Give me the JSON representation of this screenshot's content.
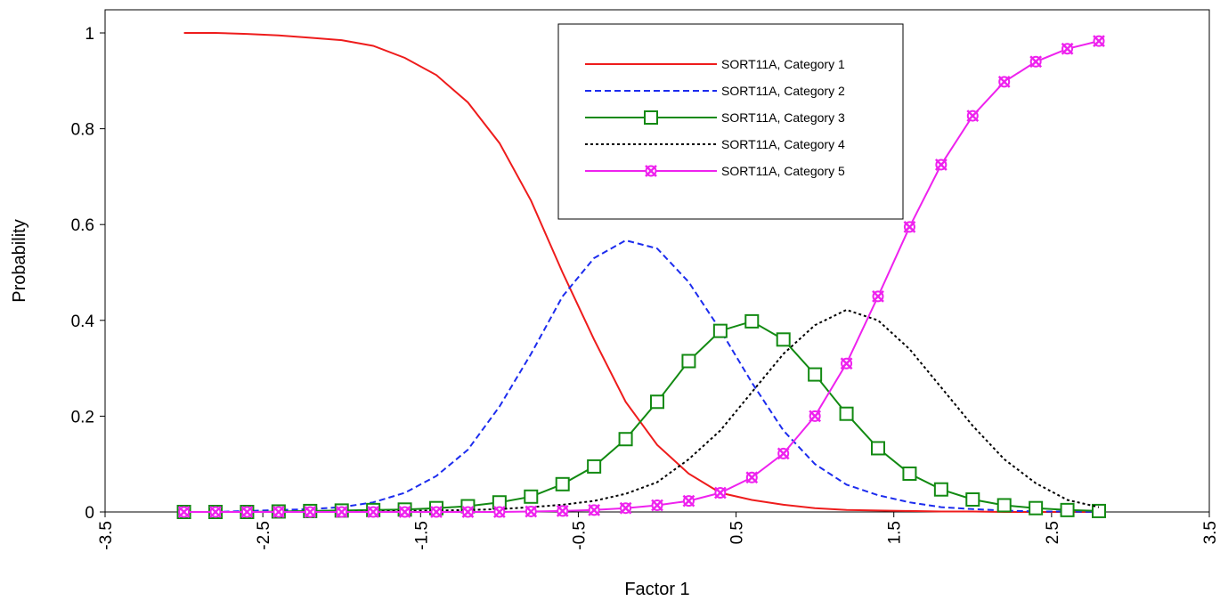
{
  "chart_data": {
    "type": "line",
    "title": "",
    "xlabel": "Factor 1",
    "ylabel": "Probability",
    "xlim": [
      -3.5,
      3.5
    ],
    "ylim": [
      0,
      1.05
    ],
    "x_ticks": [
      "-3.5",
      "-2.5",
      "-1.5",
      "-0.5",
      "0.5",
      "1.5",
      "2.5",
      "3.5"
    ],
    "y_ticks": [
      "0",
      "0.2",
      "0.4",
      "0.6",
      "0.8",
      "1"
    ],
    "grid": false,
    "legend_position": "top-center",
    "x": [
      -3.0,
      -2.8,
      -2.6,
      -2.4,
      -2.2,
      -2.0,
      -1.8,
      -1.6,
      -1.4,
      -1.2,
      -1.0,
      -0.8,
      -0.6,
      -0.4,
      -0.2,
      0.0,
      0.2,
      0.4,
      0.6,
      0.8,
      1.0,
      1.2,
      1.4,
      1.6,
      1.8,
      2.0,
      2.2,
      2.4,
      2.6,
      2.8
    ],
    "series": [
      {
        "name": "SORT11A, Category 1",
        "color": "#ee1c1c",
        "dash": "solid",
        "marker": "none",
        "values": [
          1.0,
          1.0,
          0.998,
          0.995,
          0.99,
          0.985,
          0.973,
          0.948,
          0.912,
          0.855,
          0.77,
          0.65,
          0.5,
          0.36,
          0.23,
          0.14,
          0.08,
          0.04,
          0.025,
          0.015,
          0.008,
          0.004,
          0.003,
          0.002,
          0.001,
          0.001,
          0.0,
          0.0,
          0.0,
          0.0
        ]
      },
      {
        "name": "SORT11A, Category 2",
        "color": "#1c2cee",
        "dash": "dashed",
        "marker": "none",
        "values": [
          0.0,
          0.0,
          0.002,
          0.004,
          0.006,
          0.01,
          0.02,
          0.04,
          0.075,
          0.13,
          0.22,
          0.33,
          0.45,
          0.53,
          0.567,
          0.55,
          0.48,
          0.38,
          0.27,
          0.17,
          0.1,
          0.057,
          0.035,
          0.02,
          0.01,
          0.006,
          0.003,
          0.001,
          0.001,
          0.0
        ]
      },
      {
        "name": "SORT11A, Category 3",
        "color": "#128a12",
        "dash": "solid",
        "marker": "square",
        "values": [
          0.0,
          0.0,
          0.0,
          0.001,
          0.002,
          0.003,
          0.004,
          0.005,
          0.008,
          0.012,
          0.02,
          0.032,
          0.058,
          0.095,
          0.152,
          0.23,
          0.315,
          0.378,
          0.398,
          0.36,
          0.287,
          0.205,
          0.133,
          0.08,
          0.047,
          0.026,
          0.014,
          0.008,
          0.004,
          0.002
        ]
      },
      {
        "name": "SORT11A, Category 4",
        "color": "#000000",
        "dash": "dotted",
        "marker": "none",
        "values": [
          0.0,
          0.0,
          0.0,
          0.0,
          0.0,
          0.0,
          0.001,
          0.002,
          0.003,
          0.004,
          0.006,
          0.01,
          0.015,
          0.023,
          0.038,
          0.062,
          0.11,
          0.17,
          0.25,
          0.33,
          0.39,
          0.422,
          0.4,
          0.34,
          0.26,
          0.18,
          0.11,
          0.06,
          0.025,
          0.01
        ]
      },
      {
        "name": "SORT11A, Category 5",
        "color": "#ee22ee",
        "dash": "solid",
        "marker": "x-circle",
        "values": [
          0.0,
          0.0,
          0.0,
          0.0,
          0.0,
          0.0,
          0.0,
          0.0,
          0.0,
          0.0,
          0.0,
          0.001,
          0.002,
          0.004,
          0.008,
          0.014,
          0.023,
          0.04,
          0.072,
          0.122,
          0.2,
          0.31,
          0.45,
          0.595,
          0.725,
          0.827,
          0.898,
          0.94,
          0.967,
          0.983
        ]
      }
    ]
  }
}
